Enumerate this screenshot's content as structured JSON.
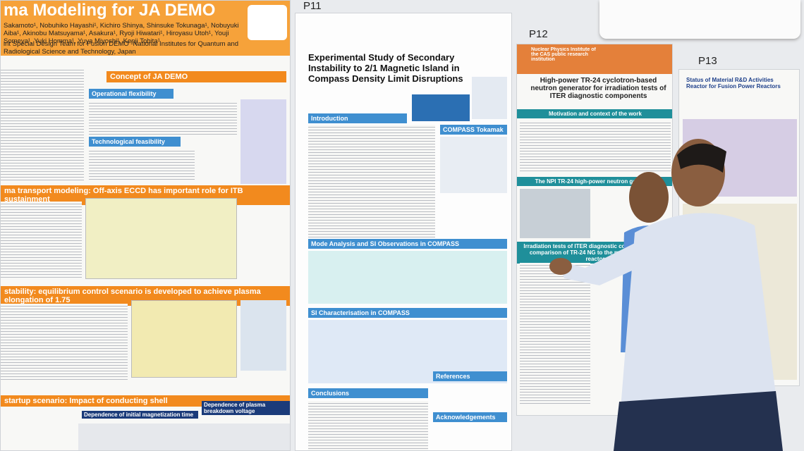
{
  "signs": [
    "P11",
    "P12",
    "P13"
  ],
  "posters": [
    {
      "title": "ma Modeling for JA DEMO",
      "authors": "Sakamoto¹, Nobuhiko Hayashi¹, Kichiro Shinya, Shinsuke Tokunaga¹, Nobuyuki Aiba¹, Akinobu Matsuyama¹, Asakura¹, Ryoji Hiwatari¹, Hiroyasu Utoh¹, Youji Someya¹, Yuki Homma¹, Yuya Miyoshi¹, Kenji Tobita¹",
      "affiliation": "int Special Design Team for Fusion DEMO ¹National Institutes for Quantum and Radiological Science and Technology, Japan",
      "sections": [
        "Concept of JA DEMO",
        "Operational flexibility",
        "Technological feasibility",
        "ma transport modeling: Off-axis ECCD has important role for ITB sustainment",
        "stability: equilibrium control scenario is developed to achieve plasma elongation of 1.75",
        "startup scenario: Impact of conducting shell"
      ],
      "subsections": [
        "Dependence of initial magnetization time",
        "Dependence of plasma breakdown voltage"
      ]
    },
    {
      "title": "Experimental Study of Secondary Instability to 2/1 Magnetic Island in Compass Density Limit Disruptions",
      "sections": [
        "Introduction",
        "COMPASS Tokamak",
        "Mode Analysis and SI Observations in COMPASS",
        "SI Characterisation in COMPASS",
        "Conclusions",
        "References",
        "Acknowledgements"
      ]
    },
    {
      "title": "High-power TR-24 cyclotron-based neutron generator for irradiation tests of ITER diagnostic components",
      "institute": "Nuclear Physics Institute of the CAS public research institution",
      "sections": [
        "Motivation and context of the work",
        "The NPI TR-24 high-power neutron generator",
        "Irradiation tests of ITER diagnostic components – the comparison of TR-24 NG to the material research reactor"
      ]
    },
    {
      "title": "Status of Material R&D Activities Reactor for Fusion Power Reactors"
    }
  ]
}
